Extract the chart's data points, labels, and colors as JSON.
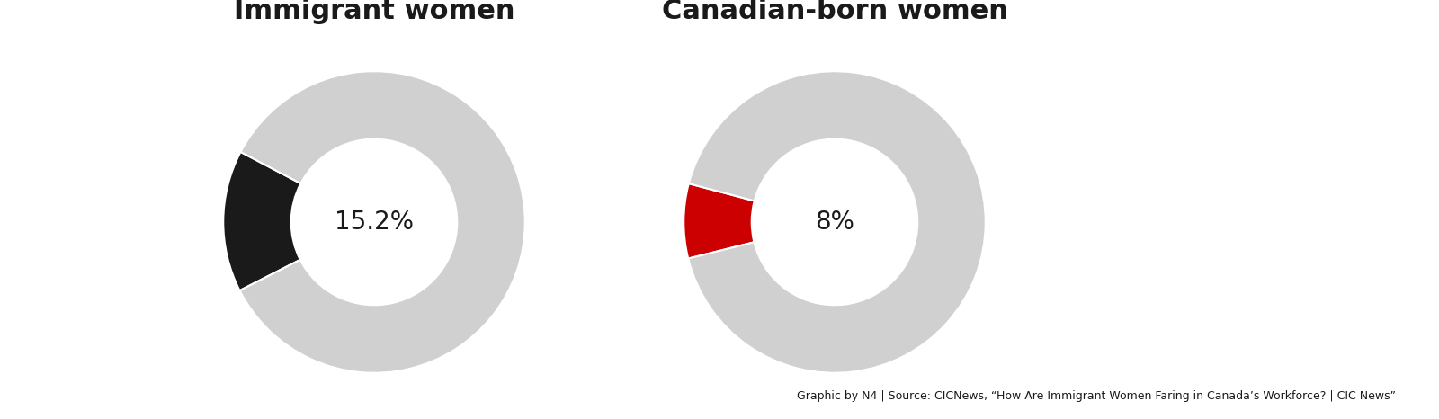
{
  "chart1_title": "Immigrant women",
  "chart1_value": 15.2,
  "chart1_label": "15.2%",
  "chart1_color": "#1a1a1a",
  "chart2_title": "Canadian-born women",
  "chart2_value": 8.0,
  "chart2_label": "8%",
  "chart2_color": "#cc0000",
  "donut_bg_color": "#d0d0d0",
  "title_fontsize": 22,
  "label_fontsize": 20,
  "source_text": "Graphic by N4 | Source: CICNews, “How Are Immigrant Women Faring in Canada’s Workforce? | CIC News”",
  "source_fontsize": 9,
  "fig_bg": "#ffffff",
  "chart1_startangle": 200,
  "chart2_startangle": 200,
  "donut_width": 0.45
}
